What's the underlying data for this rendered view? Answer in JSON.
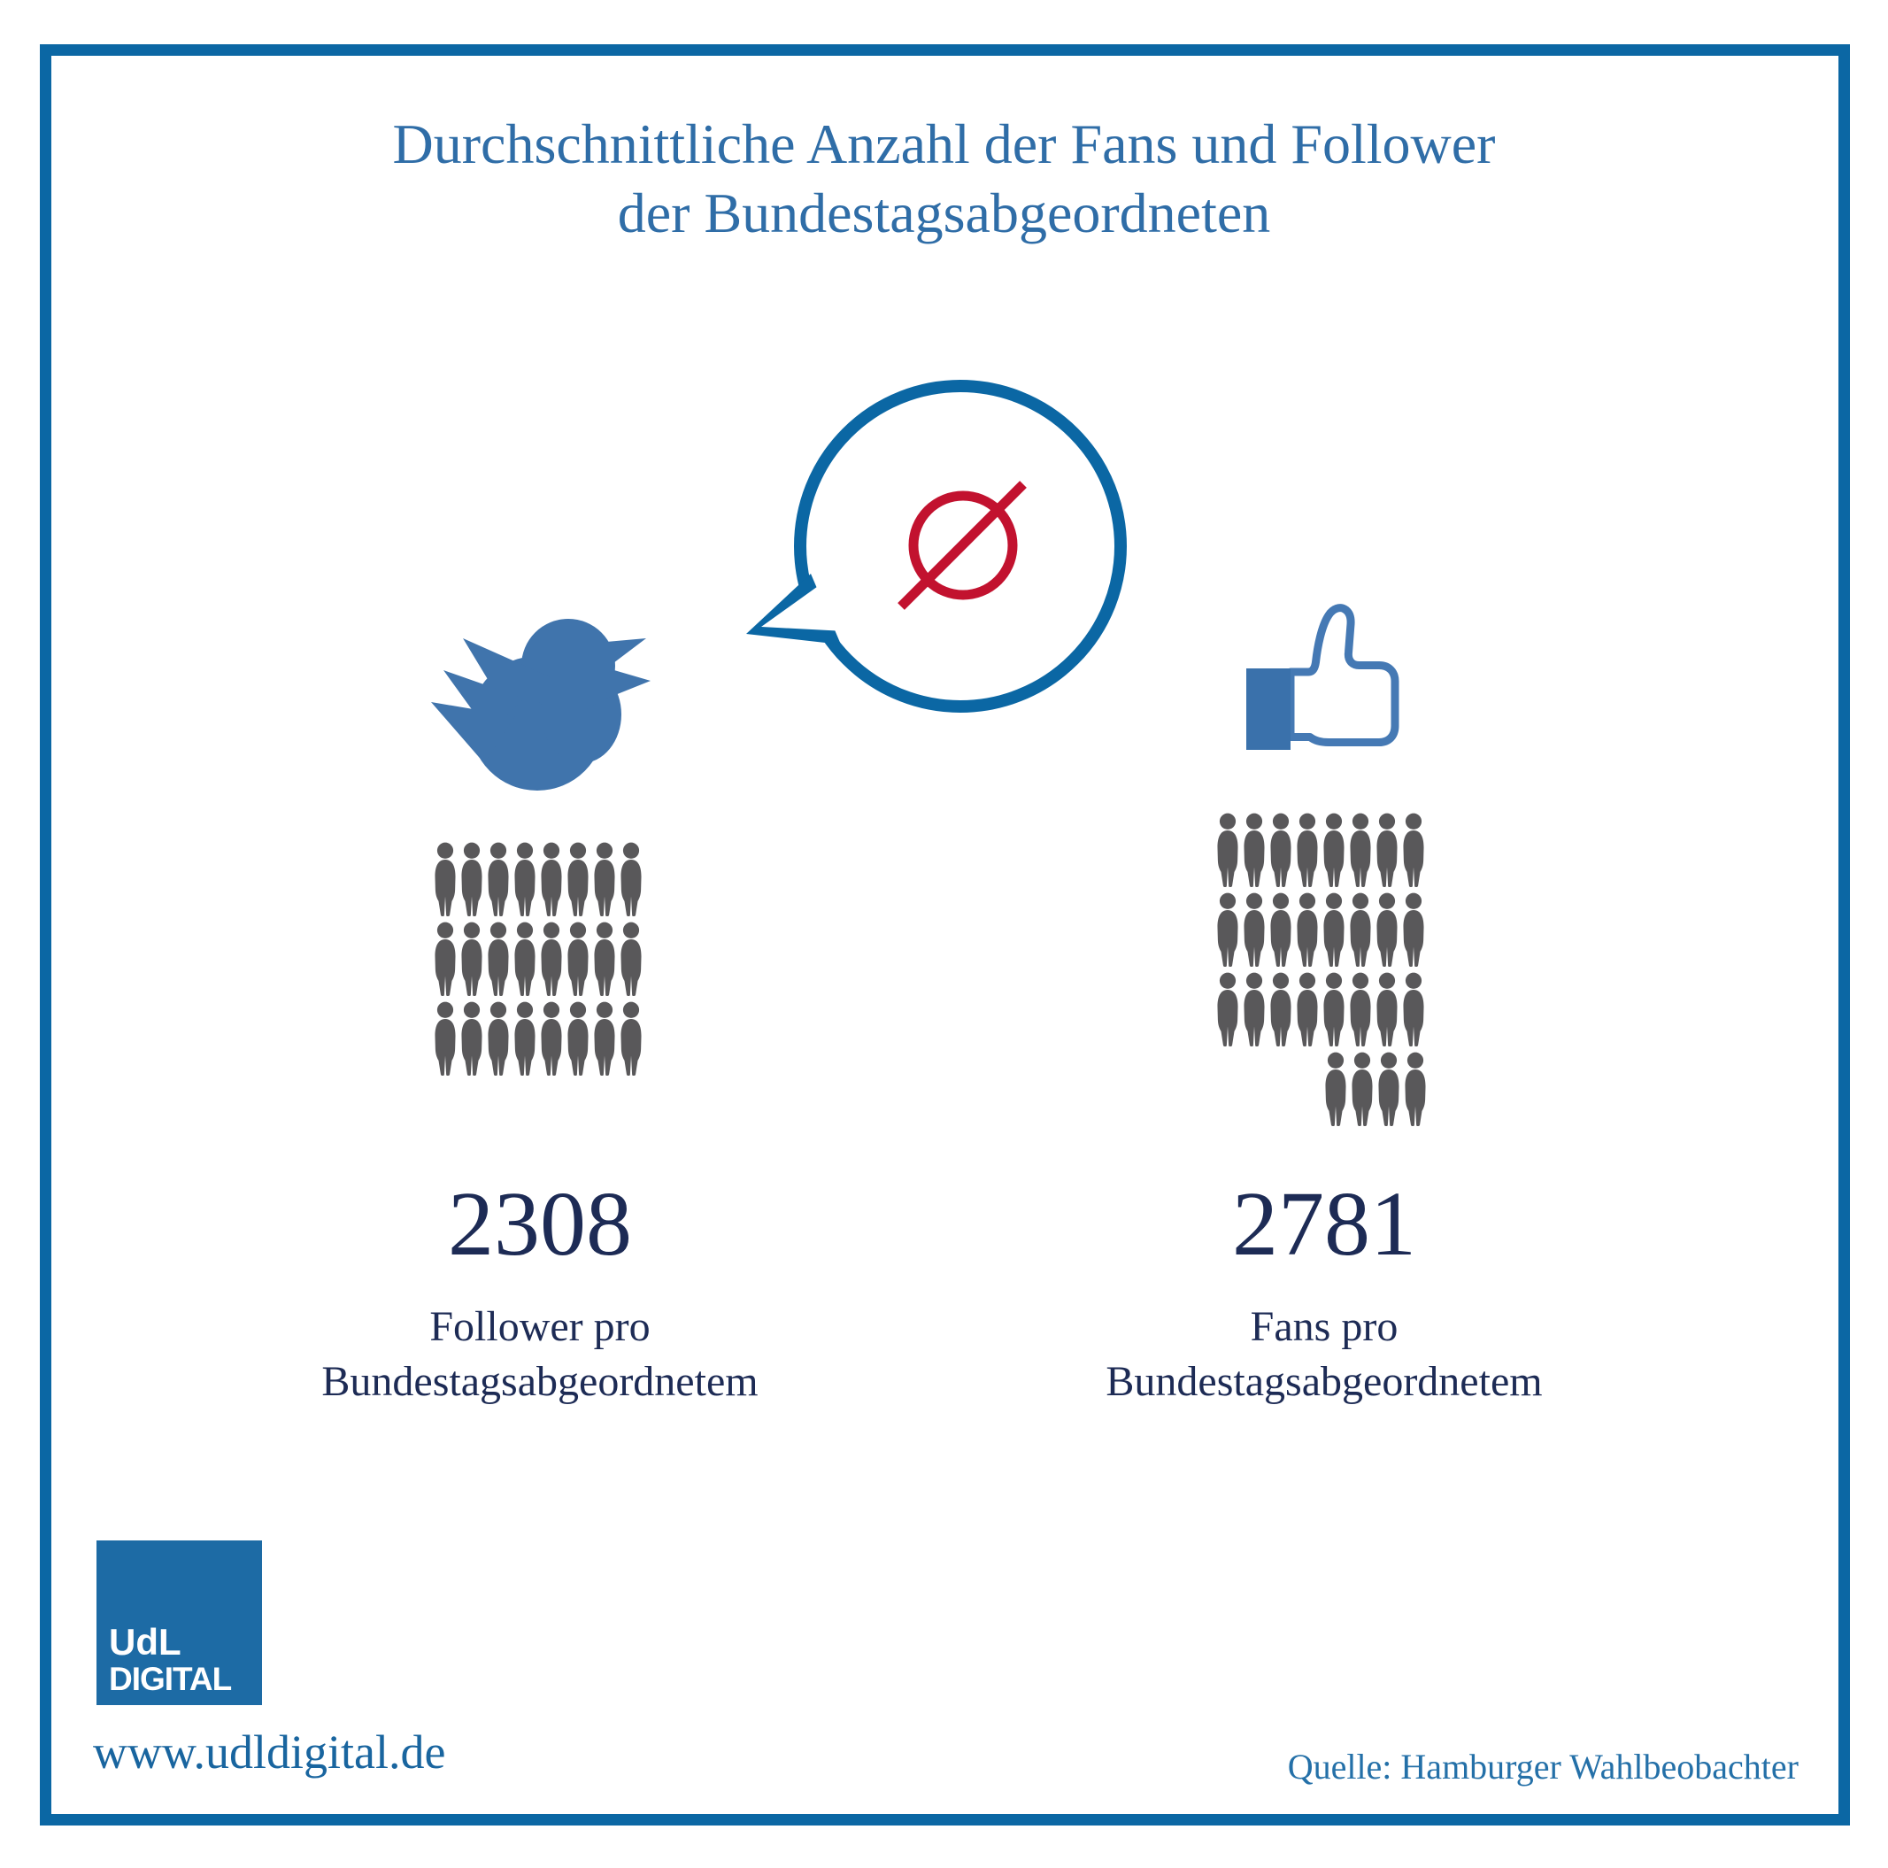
{
  "title": {
    "line1": "Durchschnittliche Anzahl der Fans und Follower",
    "line2": "der Bundestagsabgeordneten"
  },
  "chart_data": {
    "type": "pictogram",
    "title": "Durchschnittliche Anzahl der Fans und Follower der Bundestagsabgeordneten",
    "annotation_symbol": "Ø",
    "series": [
      {
        "name": "Twitter",
        "icon": "twitter-bird-icon",
        "value": 2308,
        "label_line1": "Follower pro",
        "label_line2": "Bundestagsabgeordnetem",
        "icon_count": 24,
        "icon_rows": [
          8,
          8,
          8
        ]
      },
      {
        "name": "Facebook",
        "icon": "facebook-like-icon",
        "value": 2781,
        "label_line1": "Fans pro",
        "label_line2": "Bundestagsabgeordnetem",
        "icon_count": 28,
        "icon_rows": [
          8,
          8,
          8,
          4
        ]
      }
    ]
  },
  "footer": {
    "logo_line1": "UdL",
    "logo_line2": "DIGITAL",
    "website": "www.udldigital.de",
    "source": "Quelle: Hamburger Wahlbeobachter"
  },
  "colors": {
    "frame_blue": "#0b67a4",
    "title_blue": "#2f6da7",
    "dark_navy": "#1d2b55",
    "twitter_blue": "#4074ac",
    "facebook_blue": "#4579b4",
    "facebook_cuff": "#3a71ab",
    "people_gray": "#59585a",
    "average_red": "#c2122f",
    "link_blue": "#19659f",
    "source_blue": "#2470a8",
    "logo_blue": "#1d6ba5"
  }
}
